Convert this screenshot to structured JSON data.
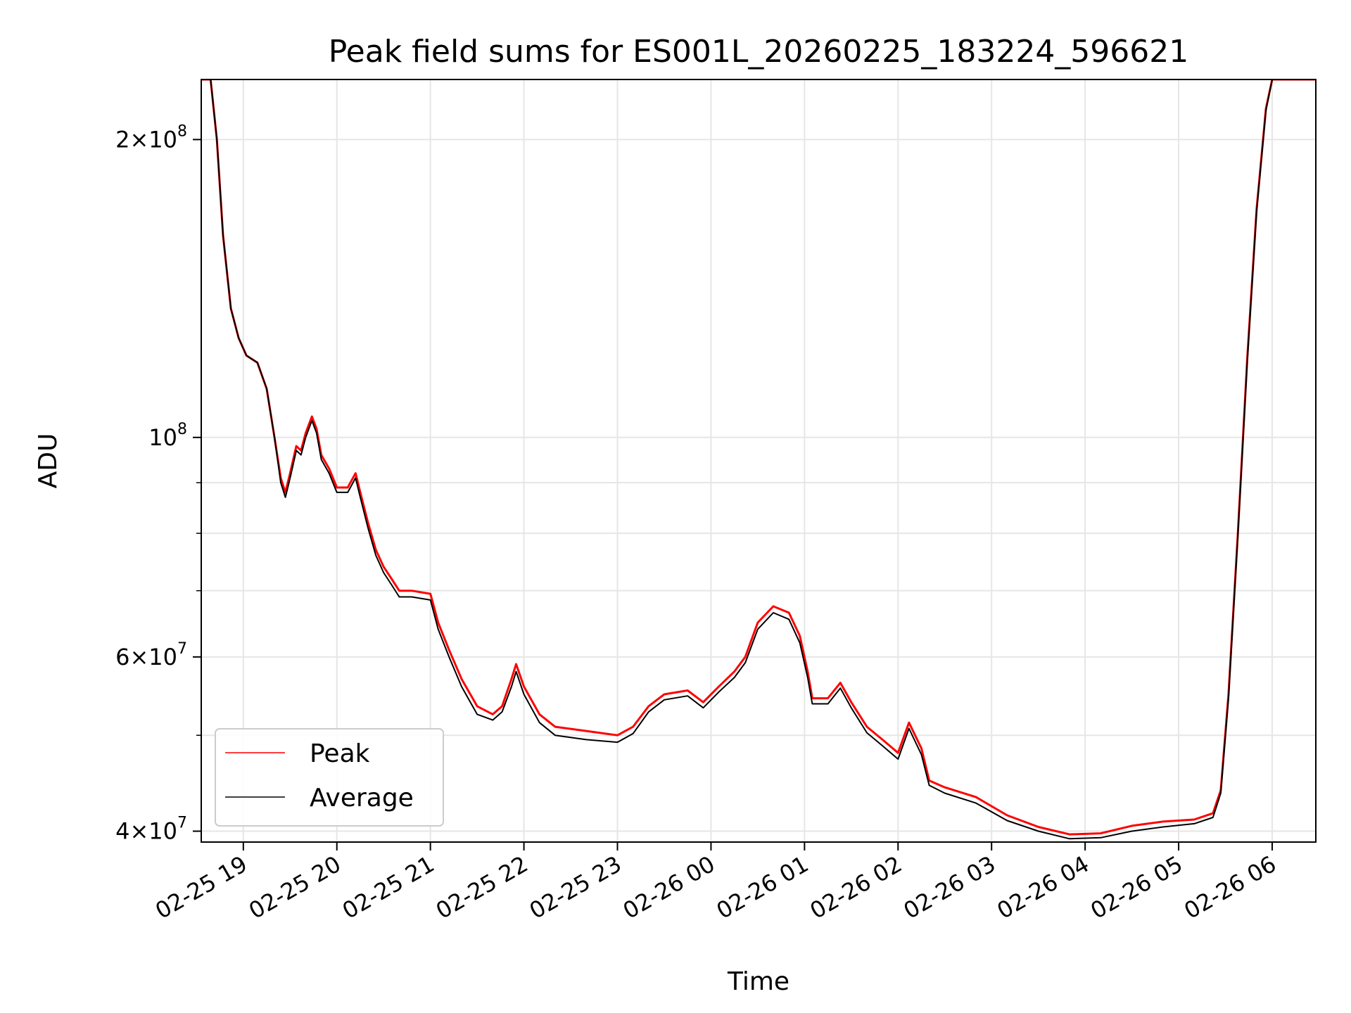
{
  "chart_data": {
    "type": "line",
    "title": "Peak field sums for ES001L_20260225_183224_596621",
    "xlabel": "Time",
    "ylabel": "ADU",
    "xlim": [
      "2026-02-25 18:33",
      "2026-02-26 06:28"
    ],
    "ylim": [
      39000000,
      230000000
    ],
    "yscale": "log",
    "grid": true,
    "legend_loc": "lower-left",
    "x_ticks": [
      {
        "value": "2026-02-25 19:00",
        "label": "02-25 19"
      },
      {
        "value": "2026-02-25 20:00",
        "label": "02-25 20"
      },
      {
        "value": "2026-02-25 21:00",
        "label": "02-25 21"
      },
      {
        "value": "2026-02-25 22:00",
        "label": "02-25 22"
      },
      {
        "value": "2026-02-25 23:00",
        "label": "02-25 23"
      },
      {
        "value": "2026-02-26 00:00",
        "label": "02-26 00"
      },
      {
        "value": "2026-02-26 01:00",
        "label": "02-26 01"
      },
      {
        "value": "2026-02-26 02:00",
        "label": "02-26 02"
      },
      {
        "value": "2026-02-26 03:00",
        "label": "02-26 03"
      },
      {
        "value": "2026-02-26 04:00",
        "label": "02-26 04"
      },
      {
        "value": "2026-02-26 05:00",
        "label": "02-26 05"
      },
      {
        "value": "2026-02-26 06:00",
        "label": "02-26 06"
      }
    ],
    "y_major_ticks": [
      {
        "value": 40000000,
        "mantissa": "4",
        "base": "10",
        "exp": "7"
      },
      {
        "value": 60000000,
        "mantissa": "6",
        "base": "10",
        "exp": "7"
      },
      {
        "value": 100000000,
        "mantissa": "",
        "base": "10",
        "exp": "8"
      },
      {
        "value": 200000000,
        "mantissa": "2",
        "base": "10",
        "exp": "8"
      }
    ],
    "y_minor_gridlines": [
      50000000,
      70000000,
      80000000,
      90000000
    ],
    "series": [
      {
        "name": "Peak",
        "color": "#ff0000",
        "points": [
          [
            "2026-02-25 18:33",
            230000000
          ],
          [
            "2026-02-25 18:39",
            230000000
          ],
          [
            "2026-02-25 18:43",
            200000000
          ],
          [
            "2026-02-25 18:47",
            160000000
          ],
          [
            "2026-02-25 18:52",
            135000000
          ],
          [
            "2026-02-25 18:57",
            126000000
          ],
          [
            "2026-02-25 19:02",
            121000000
          ],
          [
            "2026-02-25 19:09",
            119000000
          ],
          [
            "2026-02-25 19:15",
            112000000
          ],
          [
            "2026-02-25 19:20",
            100000000
          ],
          [
            "2026-02-25 19:24",
            91000000
          ],
          [
            "2026-02-25 19:27",
            88000000
          ],
          [
            "2026-02-25 19:30",
            92000000
          ],
          [
            "2026-02-25 19:34",
            98000000
          ],
          [
            "2026-02-25 19:37",
            97000000
          ],
          [
            "2026-02-25 19:40",
            101000000
          ],
          [
            "2026-02-25 19:44",
            105000000
          ],
          [
            "2026-02-25 19:47",
            102000000
          ],
          [
            "2026-02-25 19:50",
            96000000
          ],
          [
            "2026-02-25 19:55",
            93000000
          ],
          [
            "2026-02-25 20:00",
            89000000
          ],
          [
            "2026-02-25 20:07",
            89000000
          ],
          [
            "2026-02-25 20:12",
            92000000
          ],
          [
            "2026-02-25 20:15",
            88000000
          ],
          [
            "2026-02-25 20:20",
            82000000
          ],
          [
            "2026-02-25 20:25",
            77000000
          ],
          [
            "2026-02-25 20:30",
            74000000
          ],
          [
            "2026-02-25 20:35",
            72000000
          ],
          [
            "2026-02-25 20:40",
            70000000
          ],
          [
            "2026-02-25 20:48",
            70000000
          ],
          [
            "2026-02-25 21:00",
            69500000
          ],
          [
            "2026-02-25 21:05",
            65000000
          ],
          [
            "2026-02-25 21:12",
            61000000
          ],
          [
            "2026-02-25 21:20",
            57000000
          ],
          [
            "2026-02-25 21:30",
            53500000
          ],
          [
            "2026-02-25 21:40",
            52500000
          ],
          [
            "2026-02-25 21:46",
            53500000
          ],
          [
            "2026-02-25 21:52",
            57000000
          ],
          [
            "2026-02-25 21:55",
            59000000
          ],
          [
            "2026-02-25 22:00",
            56000000
          ],
          [
            "2026-02-25 22:10",
            52500000
          ],
          [
            "2026-02-25 22:20",
            51000000
          ],
          [
            "2026-02-25 22:40",
            50500000
          ],
          [
            "2026-02-25 23:00",
            50000000
          ],
          [
            "2026-02-25 23:10",
            51000000
          ],
          [
            "2026-02-25 23:20",
            53500000
          ],
          [
            "2026-02-25 23:30",
            55000000
          ],
          [
            "2026-02-25 23:45",
            55500000
          ],
          [
            "2026-02-25 23:55",
            54000000
          ],
          [
            "2026-02-26 00:05",
            56000000
          ],
          [
            "2026-02-26 00:15",
            58000000
          ],
          [
            "2026-02-26 00:22",
            60000000
          ],
          [
            "2026-02-26 00:30",
            65000000
          ],
          [
            "2026-02-26 00:40",
            67500000
          ],
          [
            "2026-02-26 00:50",
            66500000
          ],
          [
            "2026-02-26 00:57",
            63000000
          ],
          [
            "2026-02-26 01:02",
            58000000
          ],
          [
            "2026-02-26 01:05",
            54500000
          ],
          [
            "2026-02-26 01:15",
            54500000
          ],
          [
            "2026-02-26 01:23",
            56500000
          ],
          [
            "2026-02-26 01:30",
            54000000
          ],
          [
            "2026-02-26 01:40",
            51000000
          ],
          [
            "2026-02-26 01:50",
            49500000
          ],
          [
            "2026-02-26 02:00",
            48000000
          ],
          [
            "2026-02-26 02:07",
            51500000
          ],
          [
            "2026-02-26 02:15",
            48500000
          ],
          [
            "2026-02-26 02:20",
            45000000
          ],
          [
            "2026-02-26 02:30",
            44300000
          ],
          [
            "2026-02-26 02:50",
            43300000
          ],
          [
            "2026-02-26 03:10",
            41500000
          ],
          [
            "2026-02-26 03:30",
            40400000
          ],
          [
            "2026-02-26 03:50",
            39700000
          ],
          [
            "2026-02-26 04:10",
            39800000
          ],
          [
            "2026-02-26 04:30",
            40500000
          ],
          [
            "2026-02-26 04:50",
            40900000
          ],
          [
            "2026-02-26 05:10",
            41100000
          ],
          [
            "2026-02-26 05:22",
            41700000
          ],
          [
            "2026-02-26 05:27",
            44000000
          ],
          [
            "2026-02-26 05:32",
            55000000
          ],
          [
            "2026-02-26 05:38",
            80000000
          ],
          [
            "2026-02-26 05:44",
            120000000
          ],
          [
            "2026-02-26 05:50",
            170000000
          ],
          [
            "2026-02-26 05:56",
            215000000
          ],
          [
            "2026-02-26 06:00",
            230000000
          ],
          [
            "2026-02-26 06:28",
            230000000
          ]
        ]
      },
      {
        "name": "Average",
        "color": "#000000",
        "points": [
          [
            "2026-02-25 18:33",
            230000000
          ],
          [
            "2026-02-25 18:39",
            230000000
          ],
          [
            "2026-02-25 18:43",
            200000000
          ],
          [
            "2026-02-25 18:47",
            160000000
          ],
          [
            "2026-02-25 18:52",
            135000000
          ],
          [
            "2026-02-25 18:57",
            126000000
          ],
          [
            "2026-02-25 19:02",
            121000000
          ],
          [
            "2026-02-25 19:09",
            119000000
          ],
          [
            "2026-02-25 19:15",
            112000000
          ],
          [
            "2026-02-25 19:20",
            100000000
          ],
          [
            "2026-02-25 19:24",
            90000000
          ],
          [
            "2026-02-25 19:27",
            87000000
          ],
          [
            "2026-02-25 19:30",
            91000000
          ],
          [
            "2026-02-25 19:34",
            97000000
          ],
          [
            "2026-02-25 19:37",
            96000000
          ],
          [
            "2026-02-25 19:40",
            100000000
          ],
          [
            "2026-02-25 19:44",
            104000000
          ],
          [
            "2026-02-25 19:47",
            101000000
          ],
          [
            "2026-02-25 19:50",
            95000000
          ],
          [
            "2026-02-25 19:55",
            92000000
          ],
          [
            "2026-02-25 20:00",
            88000000
          ],
          [
            "2026-02-25 20:07",
            88000000
          ],
          [
            "2026-02-25 20:12",
            91000000
          ],
          [
            "2026-02-25 20:15",
            87000000
          ],
          [
            "2026-02-25 20:20",
            81000000
          ],
          [
            "2026-02-25 20:25",
            76000000
          ],
          [
            "2026-02-25 20:30",
            73000000
          ],
          [
            "2026-02-25 20:35",
            71000000
          ],
          [
            "2026-02-25 20:40",
            69000000
          ],
          [
            "2026-02-25 20:48",
            69000000
          ],
          [
            "2026-02-25 21:00",
            68500000
          ],
          [
            "2026-02-25 21:05",
            64000000
          ],
          [
            "2026-02-25 21:12",
            60000000
          ],
          [
            "2026-02-25 21:20",
            56000000
          ],
          [
            "2026-02-25 21:30",
            52500000
          ],
          [
            "2026-02-25 21:40",
            51800000
          ],
          [
            "2026-02-25 21:46",
            52800000
          ],
          [
            "2026-02-25 21:52",
            56000000
          ],
          [
            "2026-02-25 21:55",
            58000000
          ],
          [
            "2026-02-25 22:00",
            55000000
          ],
          [
            "2026-02-25 22:10",
            51500000
          ],
          [
            "2026-02-25 22:20",
            50000000
          ],
          [
            "2026-02-25 22:40",
            49500000
          ],
          [
            "2026-02-25 23:00",
            49200000
          ],
          [
            "2026-02-25 23:10",
            50200000
          ],
          [
            "2026-02-25 23:20",
            52800000
          ],
          [
            "2026-02-25 23:30",
            54300000
          ],
          [
            "2026-02-25 23:45",
            54800000
          ],
          [
            "2026-02-25 23:55",
            53300000
          ],
          [
            "2026-02-26 00:05",
            55300000
          ],
          [
            "2026-02-26 00:15",
            57200000
          ],
          [
            "2026-02-26 00:22",
            59200000
          ],
          [
            "2026-02-26 00:30",
            64000000
          ],
          [
            "2026-02-26 00:40",
            66500000
          ],
          [
            "2026-02-26 00:50",
            65500000
          ],
          [
            "2026-02-26 00:57",
            62000000
          ],
          [
            "2026-02-26 01:02",
            57200000
          ],
          [
            "2026-02-26 01:05",
            53800000
          ],
          [
            "2026-02-26 01:15",
            53800000
          ],
          [
            "2026-02-26 01:23",
            55800000
          ],
          [
            "2026-02-26 01:30",
            53300000
          ],
          [
            "2026-02-26 01:40",
            50300000
          ],
          [
            "2026-02-26 01:50",
            48800000
          ],
          [
            "2026-02-26 02:00",
            47300000
          ],
          [
            "2026-02-26 02:07",
            50800000
          ],
          [
            "2026-02-26 02:15",
            47800000
          ],
          [
            "2026-02-26 02:20",
            44500000
          ],
          [
            "2026-02-26 02:30",
            43700000
          ],
          [
            "2026-02-26 02:50",
            42700000
          ],
          [
            "2026-02-26 03:10",
            41000000
          ],
          [
            "2026-02-26 03:30",
            40000000
          ],
          [
            "2026-02-26 03:50",
            39300000
          ],
          [
            "2026-02-26 04:10",
            39400000
          ],
          [
            "2026-02-26 04:30",
            40000000
          ],
          [
            "2026-02-26 04:50",
            40400000
          ],
          [
            "2026-02-26 05:10",
            40700000
          ],
          [
            "2026-02-26 05:22",
            41300000
          ],
          [
            "2026-02-26 05:27",
            43700000
          ],
          [
            "2026-02-26 05:32",
            54500000
          ],
          [
            "2026-02-26 05:38",
            79500000
          ],
          [
            "2026-02-26 05:44",
            119000000
          ],
          [
            "2026-02-26 05:50",
            169000000
          ],
          [
            "2026-02-26 05:56",
            214000000
          ],
          [
            "2026-02-26 06:00",
            230000000
          ],
          [
            "2026-02-26 06:28",
            230000000
          ]
        ]
      }
    ]
  }
}
